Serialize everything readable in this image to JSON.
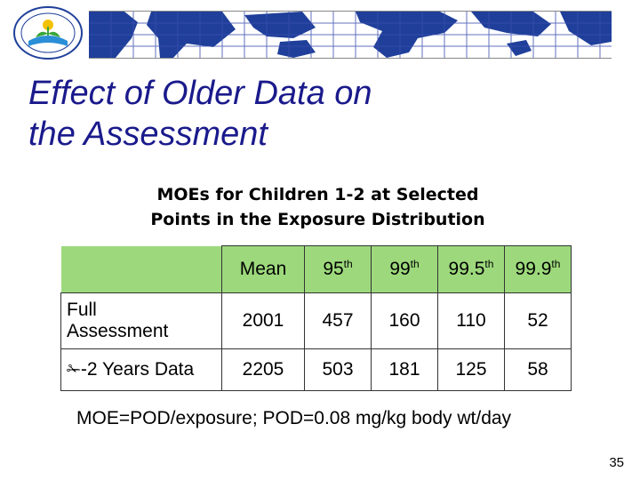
{
  "header": {
    "logo_icon": "epa-seal-icon",
    "banner_icon": "world-map-icon",
    "map_color": "#1f3f9a",
    "grid_color": "#3a4fb0"
  },
  "slide": {
    "title_line1": "Effect of Older Data on",
    "title_line2": "the Assessment",
    "caption_line1": "MOEs for Children 1-2 at Selected",
    "caption_line2": "Points in the Exposure Distribution",
    "footnote": "MOE=POD/exposure; POD=0.08 mg/kg body wt/day",
    "page_number": "35"
  },
  "table": {
    "header_bg": "#9dd97c",
    "columns": [
      {
        "base": "Mean",
        "sup": ""
      },
      {
        "base": "95",
        "sup": "th"
      },
      {
        "base": "99",
        "sup": "th"
      },
      {
        "base": "99.5",
        "sup": "th"
      },
      {
        "base": "99.9",
        "sup": "th"
      }
    ],
    "rows": [
      {
        "label_line1": "Full",
        "label_line2": "Assessment",
        "values": [
          "2001",
          "457",
          "160",
          "110",
          "52"
        ]
      },
      {
        "bullet": "✁",
        "label": "-2 Years Data",
        "values": [
          "2205",
          "503",
          "181",
          "125",
          "58"
        ]
      }
    ]
  }
}
